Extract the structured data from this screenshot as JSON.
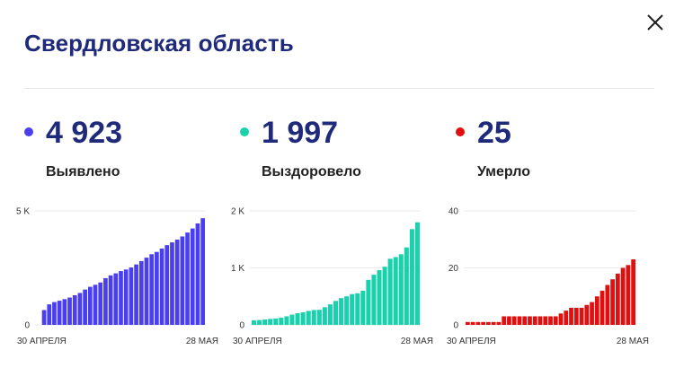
{
  "header": {
    "title": "Свердловская область"
  },
  "stats": [
    {
      "value": "4 923",
      "label": "Выявлено",
      "color": "#4a3ff0"
    },
    {
      "value": "1 997",
      "label": "Выздоровело",
      "color": "#19d2ad"
    },
    {
      "value": "25",
      "label": "Умерло",
      "color": "#e01010"
    }
  ],
  "chart_data": [
    {
      "type": "bar",
      "color": "#4a3ff0",
      "x_start_label": "30 АПРЕЛЯ",
      "x_end_label": "28 МАЯ",
      "yticks": [
        {
          "value": 0,
          "label": "0"
        },
        {
          "value": 5000,
          "label": "5 K"
        }
      ],
      "ylim": [
        0,
        5000
      ],
      "values": [
        0,
        650,
        900,
        1000,
        1060,
        1130,
        1200,
        1300,
        1400,
        1550,
        1670,
        1760,
        1860,
        2050,
        2170,
        2260,
        2360,
        2430,
        2520,
        2650,
        2800,
        2950,
        3100,
        3200,
        3350,
        3500,
        3620,
        3740,
        3880,
        4050,
        4230,
        4450,
        4680
      ]
    },
    {
      "type": "bar",
      "color": "#19d2ad",
      "x_start_label": "30 АПРЕЛЯ",
      "x_end_label": "28 МАЯ",
      "yticks": [
        {
          "value": 0,
          "label": "0"
        },
        {
          "value": 1000,
          "label": "1 K"
        },
        {
          "value": 2000,
          "label": "2 K"
        }
      ],
      "ylim": [
        0,
        2000
      ],
      "values": [
        80,
        85,
        95,
        105,
        110,
        125,
        150,
        180,
        205,
        220,
        245,
        260,
        265,
        310,
        360,
        420,
        470,
        500,
        540,
        555,
        600,
        790,
        880,
        960,
        1020,
        1160,
        1190,
        1240,
        1360,
        1680,
        1800
      ]
    },
    {
      "type": "bar",
      "color": "#e01010",
      "x_start_label": "30 АПРЕЛЯ",
      "x_end_label": "28 МАЯ",
      "yticks": [
        {
          "value": 0,
          "label": "0"
        },
        {
          "value": 20,
          "label": "20"
        },
        {
          "value": 40,
          "label": "40"
        }
      ],
      "ylim": [
        0,
        40
      ],
      "values": [
        1,
        1,
        1,
        1,
        1,
        1,
        1,
        3,
        3,
        3,
        3,
        3,
        3,
        3,
        3,
        3,
        3,
        3,
        4,
        5,
        6,
        6,
        6,
        7,
        8,
        10,
        12,
        14,
        16,
        18,
        20,
        21,
        23
      ]
    }
  ]
}
